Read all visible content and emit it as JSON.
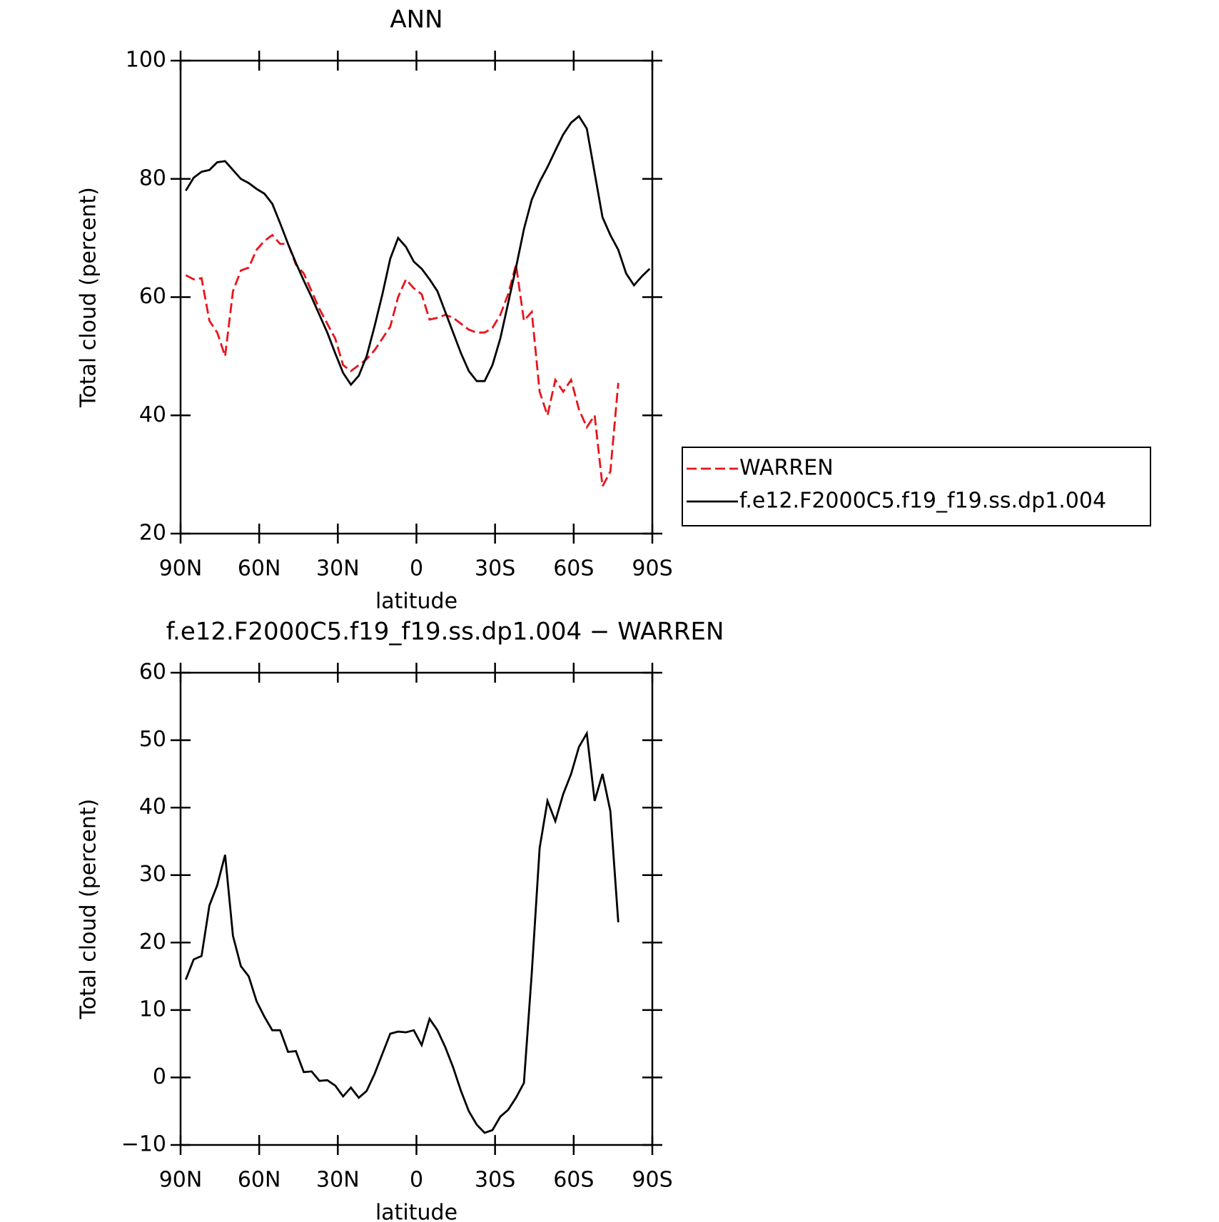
{
  "chart_data": [
    {
      "type": "line",
      "title": "ANN",
      "xlabel": "latitude",
      "ylabel": "Total cloud (percent)",
      "x": [
        88,
        85,
        82,
        79,
        76,
        73,
        70,
        67,
        64,
        61,
        58,
        55,
        52,
        49,
        46,
        43,
        40,
        37,
        34,
        31,
        28,
        25,
        22,
        19,
        16,
        13,
        10,
        7,
        4,
        1,
        -2,
        -5,
        -8,
        -11,
        -14,
        -17,
        -20,
        -23,
        -26,
        -29,
        -32,
        -35,
        -38,
        -41,
        -44,
        -47,
        -50,
        -53,
        -56,
        -59,
        -62,
        -65,
        -68,
        -71,
        -74,
        -77,
        -80,
        -83,
        -86,
        -89
      ],
      "series": [
        {
          "name": "WARREN",
          "color": "#e8141b",
          "linestyle": "dashed",
          "values": [
            63.7,
            63,
            63.2,
            56,
            54,
            50,
            61,
            64.5,
            65,
            68,
            69.5,
            70.5,
            69,
            69,
            65.5,
            64,
            61,
            58,
            55.5,
            53,
            48.5,
            47.5,
            48.5,
            49.5,
            51,
            53,
            55,
            60,
            63,
            61.5,
            60.5,
            56.2,
            56.5,
            57,
            56.5,
            55.5,
            54.5,
            54,
            54,
            54.8,
            57,
            60.5,
            65.5,
            56,
            57.5,
            44,
            40,
            46,
            44,
            46,
            41,
            38,
            40,
            28,
            30.5,
            45.5,
            null,
            null,
            null,
            null
          ]
        },
        {
          "name": "f.e12.F2000C5.f19_f19.ss.dp1.004",
          "color": "#000000",
          "linestyle": "solid",
          "values": [
            78,
            80.2,
            81.2,
            81.5,
            82.8,
            83,
            81.5,
            80,
            79.3,
            78.3,
            77.5,
            75.8,
            72.5,
            69,
            65.8,
            62.8,
            60,
            57,
            54,
            50.5,
            47.2,
            45.2,
            46.7,
            50,
            55,
            60.5,
            66.5,
            70,
            68.5,
            66,
            64.8,
            63,
            61,
            57.5,
            54,
            50.5,
            47.5,
            45.8,
            45.8,
            48.5,
            53,
            59,
            65,
            71.5,
            76.5,
            79.5,
            82,
            84.8,
            87.5,
            89.5,
            90.6,
            88.5,
            81,
            73.5,
            70.5,
            68,
            64,
            62,
            63.5,
            64.8
          ]
        }
      ],
      "xlim": [
        90,
        -90
      ],
      "xticks": [
        {
          "value": 90,
          "label": "90N"
        },
        {
          "value": 60,
          "label": "60N"
        },
        {
          "value": 30,
          "label": "30N"
        },
        0,
        {
          "value": -30,
          "label": "30S"
        },
        {
          "value": -60,
          "label": "60S"
        },
        {
          "value": -90,
          "label": "90S"
        }
      ],
      "ylim": [
        20,
        100
      ],
      "yticks": [
        20,
        40,
        60,
        80,
        100
      ],
      "legend": "right"
    },
    {
      "type": "line",
      "title": "f.e12.F2000C5.f19_f19.ss.dp1.004 − WARREN",
      "xlabel": "latitude",
      "ylabel": "Total cloud (percent)",
      "x": [
        88,
        85,
        82,
        79,
        76,
        73,
        70,
        67,
        64,
        61,
        58,
        55,
        52,
        49,
        46,
        43,
        40,
        37,
        34,
        31,
        28,
        25,
        22,
        19,
        16,
        13,
        10,
        7,
        4,
        1,
        -2,
        -5,
        -8,
        -11,
        -14,
        -17,
        -20,
        -23,
        -26,
        -29,
        -32,
        -35,
        -38,
        -41,
        -44,
        -47,
        -50,
        -53,
        -56,
        -59,
        -62,
        -65,
        -68,
        -71,
        -74,
        -77,
        -80,
        -83,
        -86,
        -89
      ],
      "series": [
        {
          "color": "#000000",
          "linestyle": "solid",
          "values": [
            14.5,
            17.5,
            18,
            25.5,
            28.5,
            33,
            21,
            16.5,
            15,
            11.3,
            9,
            7,
            7,
            3.8,
            3.9,
            0.8,
            0.9,
            -0.5,
            -0.4,
            -1.2,
            -2.8,
            -1.5,
            -3,
            -2,
            0.5,
            3.5,
            6.5,
            6.8,
            6.7,
            7,
            4.8,
            8.7,
            7,
            4.5,
            1.5,
            -2,
            -5,
            -7,
            -8.2,
            -7.8,
            -5.8,
            -4.8,
            -3,
            -0.8,
            15.5,
            34,
            41,
            38,
            42,
            45,
            49,
            51,
            41,
            45,
            39.5,
            23,
            null,
            null,
            null,
            null
          ]
        }
      ],
      "xlim": [
        90,
        -90
      ],
      "xticks": [
        {
          "value": 90,
          "label": "90N"
        },
        {
          "value": 60,
          "label": "60N"
        },
        {
          "value": 30,
          "label": "30N"
        },
        0,
        {
          "value": -30,
          "label": "30S"
        },
        {
          "value": -60,
          "label": "60S"
        },
        {
          "value": -90,
          "label": "90S"
        }
      ],
      "ylim": [
        -10,
        60
      ],
      "yticks": [
        {
          "value": -10,
          "label": "−10"
        },
        0,
        10,
        20,
        30,
        40,
        50,
        60
      ]
    }
  ]
}
